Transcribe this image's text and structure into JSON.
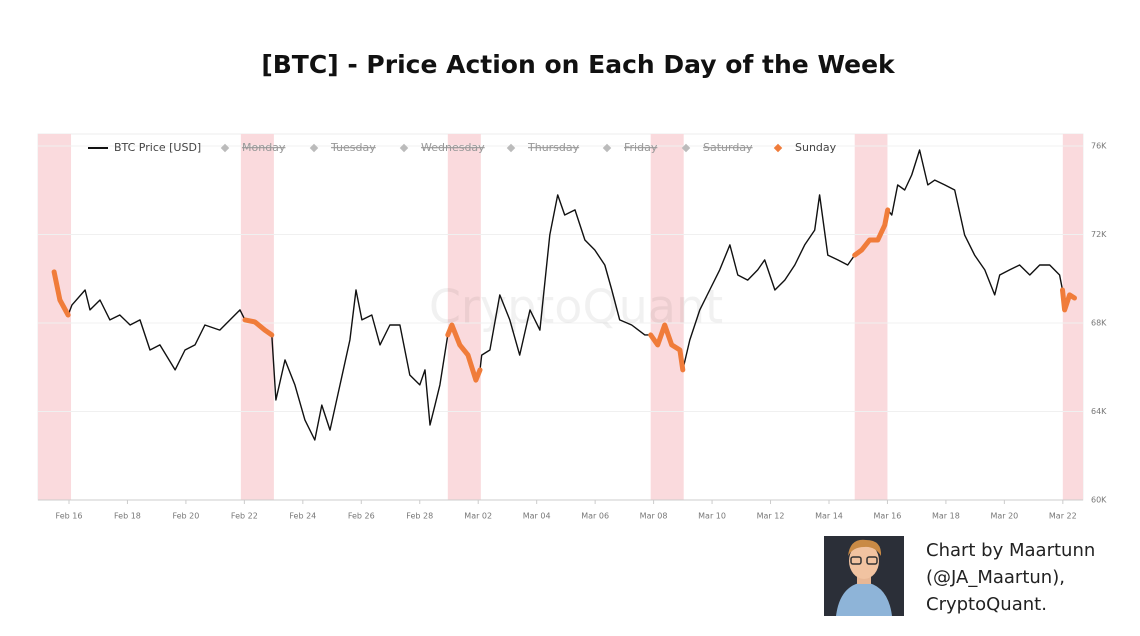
{
  "chart_data": {
    "type": "line",
    "title": "[BTC] - Price Action on Each Day of the Week",
    "watermark": "CryptoQuant",
    "credit": [
      "Chart by Maartunn",
      "(@JA_Maartun),",
      "CryptoQuant."
    ],
    "xlim": [
      14.94,
      50.69
    ],
    "xticks": [
      {
        "value": 16,
        "label": "Feb 16"
      },
      {
        "value": 18,
        "label": "Feb 18"
      },
      {
        "value": 20,
        "label": "Feb 20"
      },
      {
        "value": 22,
        "label": "Feb 22"
      },
      {
        "value": 24,
        "label": "Feb 24"
      },
      {
        "value": 26,
        "label": "Feb 26"
      },
      {
        "value": 28,
        "label": "Feb 28"
      },
      {
        "value": 30,
        "label": "Mar 02"
      },
      {
        "value": 32,
        "label": "Mar 04"
      },
      {
        "value": 34,
        "label": "Mar 06"
      },
      {
        "value": 36,
        "label": "Mar 08"
      },
      {
        "value": 38,
        "label": "Mar 10"
      },
      {
        "value": 40,
        "label": "Mar 12"
      },
      {
        "value": 42,
        "label": "Mar 14"
      },
      {
        "value": 44,
        "label": "Mar 16"
      },
      {
        "value": 46,
        "label": "Mar 18"
      },
      {
        "value": 48,
        "label": "Mar 20"
      },
      {
        "value": 50,
        "label": "Mar 22"
      }
    ],
    "ylim": [
      60000,
      76000
    ],
    "yticks": [
      {
        "value": 60000,
        "label": "60K"
      },
      {
        "value": 64000,
        "label": "64K"
      },
      {
        "value": 68000,
        "label": "68K"
      },
      {
        "value": 72000,
        "label": "72K"
      },
      {
        "value": 76000,
        "label": "76K"
      }
    ],
    "grid": true,
    "highlight_color": "#fadadd",
    "highlight_ranges": [
      [
        14.94,
        16.07
      ],
      [
        21.88,
        23.01
      ],
      [
        28.96,
        30.09
      ],
      [
        35.9,
        37.03
      ],
      [
        42.88,
        44.0
      ],
      [
        50.0,
        50.69
      ]
    ],
    "series": [
      {
        "name": "BTC Price [USD]",
        "color": "#111111",
        "x": [
          15.49,
          15.69,
          15.97,
          16.1,
          16.55,
          16.72,
          17.06,
          17.4,
          17.74,
          18.09,
          18.43,
          18.77,
          19.11,
          19.63,
          19.97,
          20.31,
          20.65,
          21.16,
          21.51,
          21.85,
          22.02,
          22.36,
          22.7,
          22.94,
          23.08,
          23.39,
          23.73,
          24.07,
          24.41,
          24.65,
          24.93,
          25.27,
          25.61,
          25.82,
          26.02,
          26.36,
          26.64,
          26.98,
          27.32,
          27.66,
          28.0,
          28.18,
          28.35,
          28.52,
          28.69,
          28.96,
          29.1,
          29.37,
          29.65,
          29.92,
          30.06,
          30.12,
          30.4,
          30.74,
          31.08,
          31.42,
          31.77,
          32.11,
          32.45,
          32.72,
          32.96,
          33.31,
          33.65,
          33.99,
          34.33,
          34.57,
          34.84,
          35.25,
          35.7,
          35.9,
          36.14,
          36.38,
          36.62,
          36.9,
          37.0,
          37.24,
          37.58,
          37.92,
          38.26,
          38.61,
          38.88,
          39.22,
          39.56,
          39.8,
          40.15,
          40.49,
          40.83,
          41.17,
          41.51,
          41.68,
          41.96,
          42.3,
          42.64,
          42.88,
          43.12,
          43.39,
          43.67,
          43.91,
          44.01,
          44.15,
          44.35,
          44.59,
          44.83,
          45.1,
          45.38,
          45.62,
          45.96,
          46.3,
          46.64,
          46.98,
          47.33,
          47.67,
          47.84,
          48.18,
          48.52,
          48.87,
          49.21,
          49.55,
          49.89,
          49.99,
          50.06,
          50.23,
          50.4
        ],
        "values": [
          70310,
          69040,
          68360,
          68810,
          69490,
          68590,
          69040,
          68140,
          68360,
          67910,
          68140,
          66780,
          67010,
          65880,
          66780,
          67010,
          67910,
          67680,
          68140,
          68590,
          68140,
          68050,
          67680,
          67460,
          64520,
          66330,
          65200,
          63620,
          62710,
          64290,
          63160,
          65200,
          67230,
          69490,
          68140,
          68360,
          67010,
          67910,
          67910,
          65650,
          65200,
          65880,
          63390,
          64290,
          65200,
          67460,
          67910,
          67010,
          66550,
          65420,
          65880,
          66550,
          66780,
          69270,
          68140,
          66550,
          68590,
          67680,
          71980,
          73790,
          72880,
          73110,
          71750,
          71300,
          70620,
          69490,
          68140,
          67910,
          67460,
          67460,
          67010,
          67910,
          67010,
          66780,
          65880,
          67230,
          68590,
          69490,
          70400,
          71530,
          70170,
          69940,
          70400,
          70850,
          69490,
          69940,
          70620,
          71530,
          72200,
          73790,
          71070,
          70850,
          70620,
          71070,
          71300,
          71750,
          71750,
          72430,
          73110,
          72880,
          74240,
          74010,
          74690,
          75820,
          74240,
          74460,
          74240,
          74010,
          71980,
          71070,
          70400,
          69270,
          70170,
          70400,
          70620,
          70170,
          70620,
          70620,
          70170,
          69490,
          68590,
          69270,
          69130
        ]
      },
      {
        "name": "Monday",
        "color": "#bbbbbb",
        "hidden": true
      },
      {
        "name": "Tuesday",
        "color": "#bbbbbb",
        "hidden": true
      },
      {
        "name": "Wednesday",
        "color": "#bbbbbb",
        "hidden": true
      },
      {
        "name": "Thursday",
        "color": "#bbbbbb",
        "hidden": true
      },
      {
        "name": "Friday",
        "color": "#bbbbbb",
        "hidden": true
      },
      {
        "name": "Saturday",
        "color": "#bbbbbb",
        "hidden": true
      },
      {
        "name": "Sunday",
        "color": "#f07c3a",
        "x": [
          15.49,
          15.69,
          15.97,
          null,
          22.02,
          22.36,
          22.7,
          22.94,
          null,
          28.96,
          29.1,
          29.37,
          29.65,
          29.92,
          30.06,
          null,
          35.9,
          36.14,
          36.38,
          36.62,
          36.9,
          37.0,
          null,
          42.88,
          43.12,
          43.39,
          43.67,
          43.91,
          44.01,
          null,
          49.99,
          50.06,
          50.23,
          50.4
        ],
        "values": [
          70310,
          69040,
          68360,
          null,
          68140,
          68050,
          67680,
          67460,
          null,
          67460,
          67910,
          67010,
          66550,
          65420,
          65880,
          null,
          67460,
          67010,
          67910,
          67010,
          66780,
          65880,
          null,
          71070,
          71300,
          71750,
          71750,
          72430,
          73110,
          null,
          69490,
          68590,
          69270,
          69130
        ]
      }
    ]
  }
}
